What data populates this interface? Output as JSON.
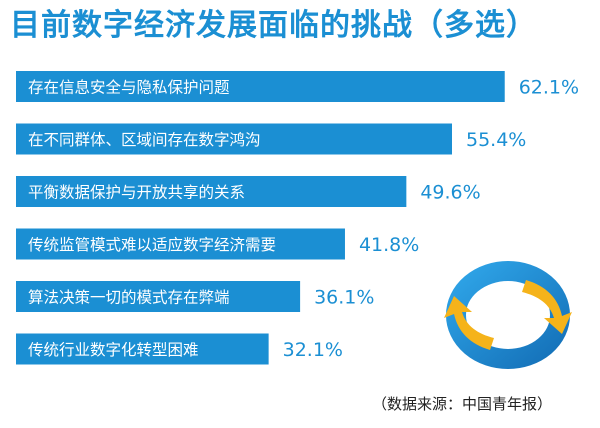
{
  "title": "目前数字经济发展面临的挑战（多选）",
  "source": "（数据来源：中国青年报）",
  "colors": {
    "bar": "#1b8fd3",
    "value_text": "#1b8fd3",
    "title": "#1b8fd3",
    "ring_dark": "#1470b8",
    "ring_light": "#2fa5e8",
    "arrow": "#f5b31a"
  },
  "icons": [
    "cycle-arrows-icon"
  ],
  "chart_data": {
    "type": "bar",
    "orientation": "horizontal",
    "title": "目前数字经济发展面临的挑战（多选）",
    "unit": "%",
    "categories": [
      "存在信息安全与隐私保护问题",
      "在不同群体、区域间存在数字鸿沟",
      "平衡数据保护与开放共享的关系",
      "传统监管模式难以适应数字经济需要",
      "算法决策一切的模式存在弊端",
      "传统行业数字化转型困难"
    ],
    "values": [
      62.1,
      55.4,
      49.6,
      41.8,
      36.1,
      32.1
    ],
    "value_labels": [
      "62.1%",
      "55.4%",
      "49.6%",
      "41.8%",
      "36.1%",
      "32.1%"
    ],
    "grid": false,
    "legend": "none"
  }
}
